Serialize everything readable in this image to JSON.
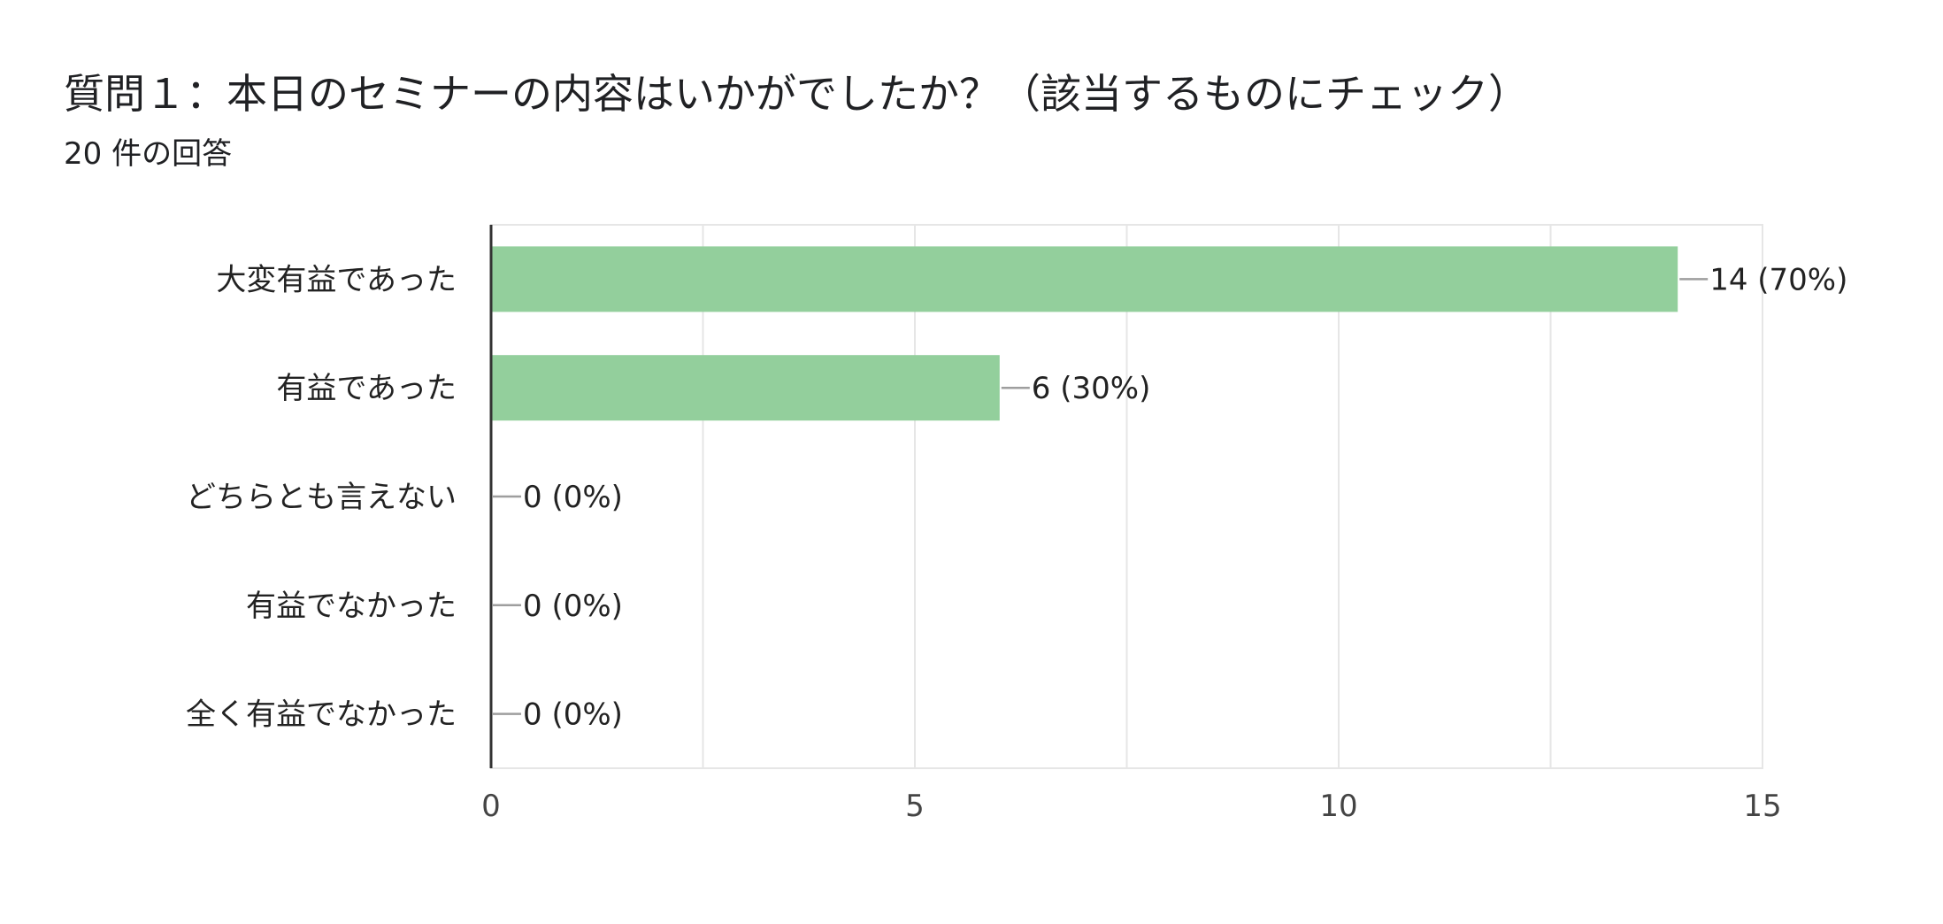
{
  "question": {
    "title": "質問１：本日のセミナーの内容はいかがでしたか？（該当するものにチェック）",
    "response_count": "20 件の回答"
  },
  "colors": {
    "bar": "#93cf9c",
    "axis": "#333333",
    "grid": "#e6e6e6",
    "leader": "#9e9e9e"
  },
  "chart_data": {
    "type": "bar",
    "orientation": "horizontal",
    "title": "",
    "xlabel": "",
    "ylabel": "",
    "categories": [
      "大変有益であった",
      "有益であった",
      "どちらとも言えない",
      "有益でなかった",
      "全く有益でなかった"
    ],
    "values": [
      14,
      6,
      0,
      0,
      0
    ],
    "data_labels": [
      "14 (70%)",
      "6 (30%)",
      "0 (0%)",
      "0 (0%)",
      "0 (0%)"
    ],
    "xlim": [
      0,
      15
    ],
    "xticks": [
      0,
      5,
      10,
      15
    ],
    "grid": true
  }
}
